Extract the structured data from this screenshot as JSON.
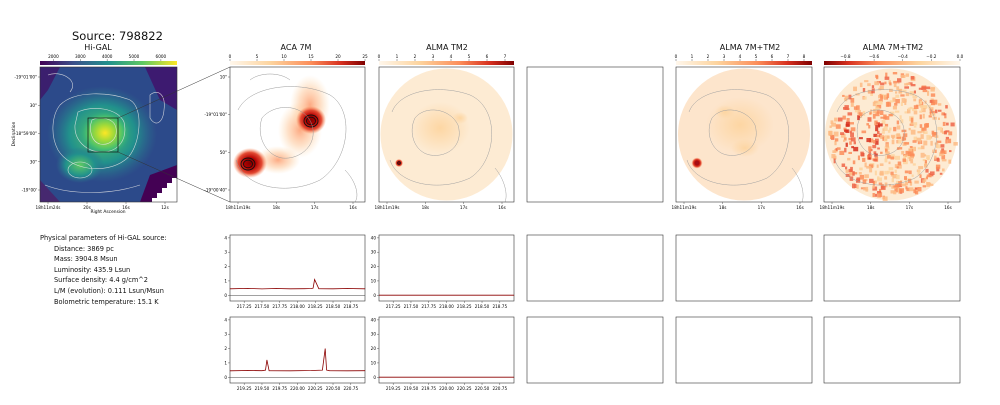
{
  "page": {
    "source_title": "Source: 798822",
    "panel_titles": {
      "higal": "Hi-GAL",
      "aca7m": "ACA 7M",
      "tm2": "ALMA TM2",
      "combo": "ALMA 7M+TM2",
      "combo2": "ALMA 7M+TM2"
    },
    "params": {
      "header": "Physical parameters of Hi-GAL source:",
      "distance": "Distance: 3869 pc",
      "mass": "Mass: 3904.8 Msun",
      "luminosity": "Luminosity: 435.9 Lsun",
      "surface_density": "Surface density: 4.4 g/cm^2",
      "lm": "L/M (evolution): 0.111 Lsun/Msun",
      "temperature": "Bolometric temperature: 15.1 K"
    },
    "colors": {
      "viridis": [
        "#440154",
        "#3b528b",
        "#21918c",
        "#5ec962",
        "#fde725"
      ],
      "orrd": [
        "#fff7ec",
        "#fdd49e",
        "#fc8d59",
        "#d7301f",
        "#7f0000"
      ],
      "spectrum": "#8b0000"
    }
  },
  "chart_data": [
    {
      "type": "heatmap",
      "title": "Hi-GAL",
      "colorbar_ticks": [
        "2000",
        "3000",
        "4000",
        "5000",
        "6000"
      ],
      "colorbar_range": [
        1500,
        6600
      ],
      "xlabel": "Right Ascension",
      "ylabel": "Declination",
      "x_ticks": [
        "18h11m24s",
        "20s",
        "16s",
        "12s"
      ],
      "y_ticks": [
        "-19°00'",
        "30\"",
        "-18°59'00\"",
        "30\"",
        "-19°01'00\""
      ]
    },
    {
      "type": "heatmap",
      "title": "ACA 7M",
      "colorbar_ticks": [
        "0",
        "5",
        "10",
        "15",
        "20",
        "25"
      ],
      "colorbar_range": [
        0,
        25
      ],
      "x_ticks": [
        "18h11m19s",
        "18s",
        "17s",
        "16s"
      ],
      "y_ticks": [
        "-19°00'40\"",
        "50\"",
        "-19°01'00\"",
        "10\""
      ]
    },
    {
      "type": "heatmap",
      "title": "ALMA TM2",
      "colorbar_ticks": [
        "0",
        "1",
        "2",
        "3",
        "4",
        "5",
        "6",
        "7"
      ],
      "colorbar_range": [
        0,
        7.5
      ],
      "x_ticks": [
        "18h11m19s",
        "18s",
        "17s",
        "16s"
      ]
    },
    {
      "type": "heatmap",
      "title": "ALMA 7M+TM2",
      "colorbar_ticks": [
        "0",
        "1",
        "2",
        "3",
        "4",
        "5",
        "6",
        "7",
        "8"
      ],
      "colorbar_range": [
        0,
        8.5
      ],
      "x_ticks": [
        "18h11m19s",
        "18s",
        "17s",
        "16s"
      ]
    },
    {
      "type": "heatmap",
      "title": "ALMA 7M+TM2",
      "colorbar_ticks": [
        "−0.8",
        "−0.6",
        "−0.4",
        "−0.2",
        "0.0"
      ],
      "colorbar_range": [
        -0.95,
        0.0
      ],
      "x_ticks": [
        "18h11m19s",
        "18s",
        "17s",
        "16s"
      ]
    },
    {
      "type": "line",
      "panel": "ACA 7M spw1",
      "x": [
        217.05,
        217.3,
        217.5,
        217.7,
        217.9,
        218.1,
        218.2,
        218.22,
        218.24,
        218.3,
        218.5,
        218.7,
        218.95
      ],
      "values": [
        0.45,
        0.48,
        0.44,
        0.47,
        0.45,
        0.46,
        0.47,
        0.5,
        1.1,
        0.46,
        0.45,
        0.47,
        0.45
      ],
      "x_ticks": [
        "217.25",
        "217.50",
        "217.75",
        "218.00",
        "218.25",
        "218.50",
        "218.75"
      ],
      "xlim": [
        217.05,
        218.95
      ],
      "y_ticks": [
        "0",
        "1",
        "2",
        "3",
        "4"
      ],
      "ylim": [
        -0.4,
        4.2
      ]
    },
    {
      "type": "line",
      "panel": "ALMA TM2 spw1",
      "x": [
        217.05,
        217.5,
        218.0,
        218.5,
        218.95
      ],
      "values": [
        0.05,
        0.05,
        0.05,
        0.05,
        0.05
      ],
      "x_ticks": [
        "217.25",
        "217.50",
        "217.75",
        "218.00",
        "218.25",
        "218.50",
        "218.75"
      ],
      "xlim": [
        217.05,
        218.95
      ],
      "y_ticks": [
        "0",
        "10",
        "20",
        "30",
        "40"
      ],
      "ylim": [
        -4,
        42
      ]
    },
    {
      "type": "line",
      "panel": "ACA 7M spw2",
      "x": [
        219.05,
        219.3,
        219.5,
        219.55,
        219.57,
        219.6,
        219.9,
        220.2,
        220.35,
        220.39,
        220.41,
        220.45,
        220.7,
        220.95
      ],
      "values": [
        0.45,
        0.47,
        0.46,
        0.5,
        1.2,
        0.46,
        0.45,
        0.47,
        0.5,
        2.0,
        0.5,
        0.46,
        0.45,
        0.46
      ],
      "x_ticks": [
        "219.25",
        "219.50",
        "219.75",
        "220.00",
        "220.25",
        "220.50",
        "220.75"
      ],
      "xlim": [
        219.05,
        220.95
      ],
      "y_ticks": [
        "0",
        "1",
        "2",
        "3",
        "4"
      ],
      "ylim": [
        -0.4,
        4.2
      ]
    },
    {
      "type": "line",
      "panel": "ALMA TM2 spw2",
      "x": [
        219.05,
        219.5,
        220.0,
        220.5,
        220.95
      ],
      "values": [
        0.05,
        0.05,
        0.05,
        0.05,
        0.05
      ],
      "x_ticks": [
        "219.25",
        "219.50",
        "219.75",
        "220.00",
        "220.25",
        "220.50",
        "220.75"
      ],
      "xlim": [
        219.05,
        220.95
      ],
      "y_ticks": [
        "0",
        "10",
        "20",
        "30",
        "40"
      ],
      "ylim": [
        -4,
        42
      ]
    }
  ]
}
